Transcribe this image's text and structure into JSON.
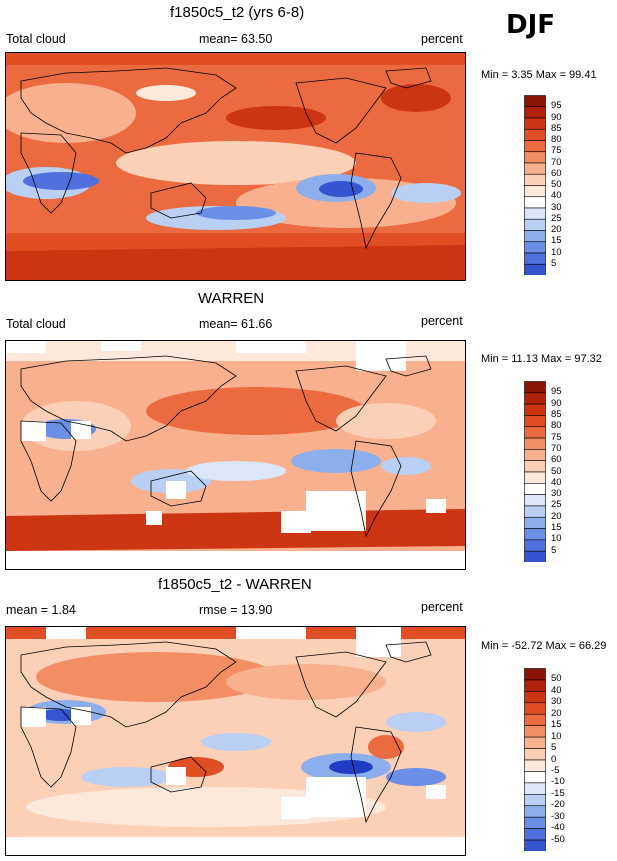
{
  "season": "DJF",
  "colors": {
    "pos": [
      "#fde9dc",
      "#fbd0b7",
      "#f8b08e",
      "#f38d63",
      "#ec6a3f",
      "#e04e24",
      "#cc3512",
      "#b0220a",
      "#8a1406"
    ],
    "neg": [
      "#dbe7f8",
      "#b9cff3",
      "#8daeec",
      "#6b8fe6",
      "#4f70dd",
      "#3454d0",
      "#1f3cc2",
      "#1128a3",
      "#0a1a7a"
    ]
  },
  "panels": [
    {
      "title": "f1850c5_t2 (yrs 6-8)",
      "left_label": "Total cloud",
      "mid_label": "mean=  63.50",
      "units": "percent",
      "minmax": "Min =   3.35 Max =  99.41",
      "colorbar": [
        "95",
        "90",
        "85",
        "80",
        "75",
        "70",
        "60",
        "50",
        "40",
        "30",
        "25",
        "20",
        "15",
        "10",
        "5"
      ]
    },
    {
      "title": "WARREN",
      "left_label": "Total cloud",
      "mid_label": "mean=  61.66",
      "units": "percent",
      "minmax": "Min =  11.13 Max =  97.32",
      "colorbar": [
        "95",
        "90",
        "85",
        "80",
        "75",
        "70",
        "60",
        "50",
        "40",
        "30",
        "25",
        "20",
        "15",
        "10",
        "5"
      ]
    },
    {
      "title": "f1850c5_t2 - WARREN",
      "left_label": "mean =   1.84",
      "mid_label": "rmse =  13.90",
      "units": "percent",
      "minmax": "Min = -52.72 Max =  66.29",
      "colorbar": [
        "50",
        "40",
        "30",
        "20",
        "15",
        "10",
        "5",
        "0",
        "-5",
        "-10",
        "-15",
        "-20",
        "-30",
        "-40",
        "-50"
      ]
    }
  ],
  "chart_data": [
    {
      "type": "heatmap",
      "title": "f1850c5_t2 (yrs 6-8)",
      "variable": "Total cloud",
      "units": "percent",
      "mean": 63.5,
      "min": 3.35,
      "max": 99.41,
      "levels": [
        5,
        10,
        15,
        20,
        25,
        30,
        40,
        50,
        60,
        70,
        75,
        80,
        85,
        90,
        95
      ]
    },
    {
      "type": "heatmap",
      "title": "WARREN",
      "variable": "Total cloud",
      "units": "percent",
      "mean": 61.66,
      "min": 11.13,
      "max": 97.32,
      "levels": [
        5,
        10,
        15,
        20,
        25,
        30,
        40,
        50,
        60,
        70,
        75,
        80,
        85,
        90,
        95
      ]
    },
    {
      "type": "heatmap",
      "title": "f1850c5_t2 - WARREN",
      "units": "percent",
      "mean": 1.84,
      "rmse": 13.9,
      "min": -52.72,
      "max": 66.29,
      "levels": [
        -50,
        -40,
        -30,
        -20,
        -15,
        -10,
        -5,
        0,
        5,
        10,
        15,
        20,
        30,
        40,
        50
      ]
    }
  ]
}
